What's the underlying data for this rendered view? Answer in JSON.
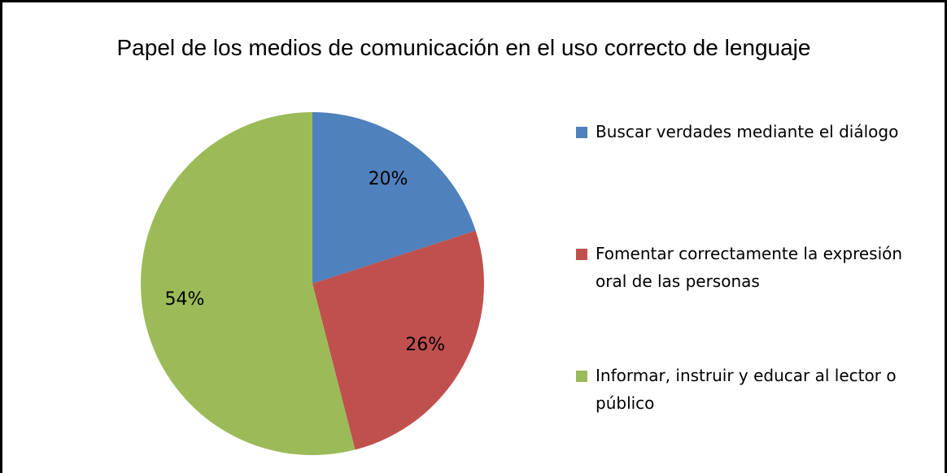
{
  "chart_data": {
    "type": "pie",
    "title": "Papel de los medios de comunicación en el uso correcto de lenguaje",
    "categories": [
      "Buscar verdades mediante el diálogo",
      "Fomentar correctamente la expresión oral de las personas",
      "Informar, instruir y educar al lector o público"
    ],
    "values": [
      20,
      26,
      54
    ],
    "value_labels": [
      "20%",
      "26%",
      "54%"
    ],
    "colors": [
      "#4f81bd",
      "#c0504d",
      "#9bbb59"
    ],
    "legend": "right"
  }
}
